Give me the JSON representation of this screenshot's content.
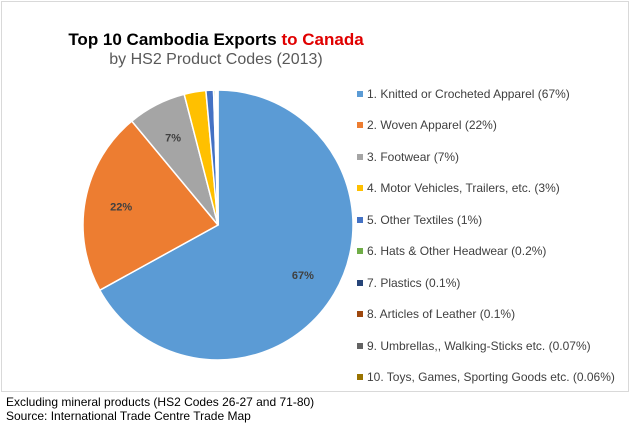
{
  "chart_data": {
    "type": "pie",
    "title": "Top 10 Cambodia Exports",
    "title_accent": "to Canada",
    "subtitle": "by HS2 Product Codes (2013)",
    "slices": [
      {
        "label": "1. Knitted or Crocheted Apparel (67%)",
        "value": 67,
        "data_label": "67%",
        "color": "#5b9bd5"
      },
      {
        "label": "2. Woven Apparel (22%)",
        "value": 22,
        "data_label": "22%",
        "color": "#ed7d31"
      },
      {
        "label": "3. Footwear (7%)",
        "value": 7,
        "data_label": "7%",
        "color": "#a5a5a5"
      },
      {
        "label": "4. Motor Vehicles, Trailers, etc. (3%)",
        "value": 2.6,
        "data_label": "",
        "color": "#ffc000"
      },
      {
        "label": "5. Other Textiles (1%)",
        "value": 0.9,
        "data_label": "",
        "color": "#4472c4"
      },
      {
        "label": "6. Hats & Other Headwear (0.2%)",
        "value": 0.2,
        "data_label": "",
        "color": "#70ad47"
      },
      {
        "label": "7. Plastics (0.1%)",
        "value": 0.1,
        "data_label": "",
        "color": "#264478"
      },
      {
        "label": "8. Articles of Leather (0.1%)",
        "value": 0.1,
        "data_label": "",
        "color": "#9e480e"
      },
      {
        "label": "9. Umbrellas,, Walking-Sticks etc. (0.07%)",
        "value": 0.07,
        "data_label": "",
        "color": "#636363"
      },
      {
        "label": "10. Toys, Games, Sporting Goods etc. (0.06%)",
        "value": 0.06,
        "data_label": "",
        "color": "#997300"
      }
    ],
    "legend_position": "right"
  },
  "footer": {
    "note": "Excluding mineral products (HS2 Codes 26-27 and 71-80)",
    "source": "Source: International Trade Centre Trade Map"
  }
}
